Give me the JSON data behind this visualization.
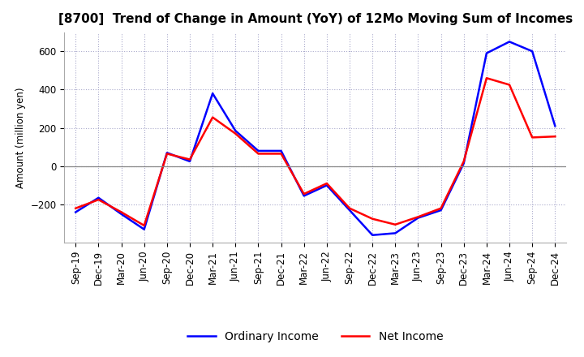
{
  "title": "[8700]  Trend of Change in Amount (YoY) of 12Mo Moving Sum of Incomes",
  "ylabel": "Amount (million yen)",
  "background_color": "#ffffff",
  "grid_color": "#aaaacc",
  "x_labels": [
    "Sep-19",
    "Dec-19",
    "Mar-20",
    "Jun-20",
    "Sep-20",
    "Dec-20",
    "Mar-21",
    "Jun-21",
    "Sep-21",
    "Dec-21",
    "Mar-22",
    "Jun-22",
    "Sep-22",
    "Dec-22",
    "Mar-23",
    "Jun-23",
    "Sep-23",
    "Dec-23",
    "Mar-24",
    "Jun-24",
    "Sep-24",
    "Dec-24"
  ],
  "ordinary_income": [
    -240,
    -165,
    -250,
    -330,
    70,
    25,
    380,
    185,
    80,
    80,
    -155,
    -100,
    -230,
    -360,
    -350,
    -270,
    -230,
    15,
    590,
    650,
    600,
    210
  ],
  "net_income": [
    -220,
    -175,
    -240,
    -310,
    65,
    35,
    255,
    170,
    65,
    65,
    -145,
    -90,
    -220,
    -275,
    -305,
    -265,
    -220,
    25,
    460,
    425,
    150,
    155
  ],
  "ordinary_color": "#0000ff",
  "net_color": "#ff0000",
  "ylim": [
    -400,
    700
  ],
  "yticks": [
    -200,
    0,
    200,
    400,
    600
  ],
  "title_fontsize": 11,
  "legend_fontsize": 10,
  "axis_fontsize": 8.5
}
